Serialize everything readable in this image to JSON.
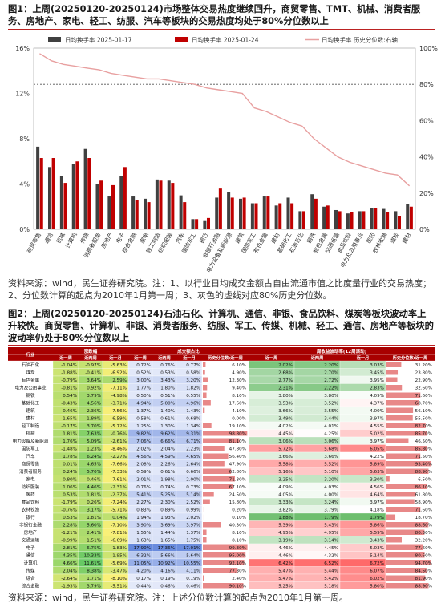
{
  "fig1": {
    "title": "图1：上周(20250120-20250124)市场整体交易热度继续回升，商贸零售、TMT、机械、消费者服务、房地产、家电、轻工、纺服、汽车等板块的交易热度均处于80%分位数以上",
    "source": "资料来源：wind，民生证券研究院。注：1、以行业日均成交金额占自由流通市值之比度量行业的交易热度；2、分位数计算的起点为2010年1月第一周；3、灰色的虚线对应80%历史分位数。"
  },
  "fig2": {
    "title": "图2：上周(20250120-20250124)石油石化、计算机、通信、非银、食品饮料、煤炭等板块波动率上升较快。商贸零售、计算机、非银、消费者服务、纺服、军工、传媒、机械、轻工、通信、房地产等板块的波动率仍处于80%分位数以上",
    "source": "资料来源：wind，民生证券研究院。注：上述分位数计算的起点为2010年1月第一周。"
  },
  "chart_data": [
    {
      "type": "bar",
      "title": "",
      "legend": [
        "日均换手率 2025-01-17",
        "日均换手率 2025-01-24",
        "日均换手率 历史分位数:右轴"
      ],
      "legend_position": "top",
      "categories": [
        "商贸零售",
        "通信",
        "机械",
        "计算机",
        "传媒",
        "消费者服务",
        "房地产",
        "电子",
        "综合金融",
        "家电",
        "轻工制造",
        "纺织服装",
        "汽车",
        "国防军工",
        "银行",
        "非银行金融",
        "电力设备及新能源",
        "建筑",
        "国防军工2",
        "有色金属",
        "建材",
        "基础化工",
        "石油石化",
        "钢铁",
        "有色金属2",
        "交通运输",
        "食品饮料",
        "电力及公用事业",
        "医药",
        "农林牧渔",
        "煤炭",
        "建材2"
      ],
      "series": [
        {
          "name": "日均换手率 2025-01-17",
          "color": "#404040",
          "axis": "left",
          "values": [
            7.3,
            5.5,
            4.7,
            5.8,
            7.1,
            4.0,
            2.9,
            4.7,
            2.9,
            2.7,
            4.4,
            4.3,
            3.0,
            0.9,
            0.8,
            2.8,
            3.3,
            2.7,
            2.3,
            2.9,
            2.1,
            2.8,
            1.6,
            3.1,
            2.0,
            1.7,
            1.4,
            1.6,
            1.9,
            1.8,
            1.6,
            2.2
          ]
        },
        {
          "name": "日均换手率 2025-01-24",
          "color": "#c00000",
          "axis": "left",
          "values": [
            6.3,
            6.3,
            4.1,
            6.0,
            6.3,
            4.3,
            3.9,
            5.5,
            2.6,
            2.4,
            4.3,
            4.1,
            2.4,
            0.9,
            1.0,
            3.6,
            2.8,
            2.8,
            2.3,
            2.9,
            2.3,
            2.3,
            1.6,
            2.7,
            2.1,
            1.6,
            1.5,
            1.6,
            1.9,
            1.5,
            1.2,
            2.0
          ]
        },
        {
          "name": "日均换手率 历史分位数:右轴",
          "color": "#e8a0a0",
          "axis": "right",
          "type": "line",
          "values": [
            97,
            93,
            91,
            90,
            89,
            88,
            86,
            85,
            84,
            83,
            83,
            82,
            81,
            80,
            78,
            77,
            76,
            75,
            67,
            65,
            62,
            59,
            57,
            50,
            45,
            40,
            37,
            35,
            33,
            31,
            30,
            24
          ]
        }
      ],
      "ylim_left": [
        0,
        16
      ],
      "ylim_right": [
        0,
        100
      ],
      "yticks_left": [
        "0%",
        "4%",
        "8%",
        "12%",
        "16%"
      ],
      "yticks_right": [
        "0%",
        "20%",
        "40%",
        "60%",
        "80%",
        "100%"
      ],
      "reference_line": {
        "value": 80,
        "axis": "right",
        "style": "dashed"
      }
    },
    {
      "type": "table",
      "group_headers": [
        "涨跌幅",
        "成交额占比",
        "周收益波动率(12周滚动)"
      ],
      "columns": [
        "行业",
        "近一周",
        "近两周",
        "近一月",
        "近一周",
        "近两周",
        "近一月",
        "历史分位数:近一周",
        "近一周",
        "近两周",
        "近一月",
        "历史分位数:近一周"
      ],
      "rows": [
        [
          "石油石化",
          "-1.04%",
          "-0.97%",
          "-5.63%",
          "0.72%",
          "0.76%",
          "0.77%",
          "6.10%",
          "2.02%",
          "2.20%",
          "3.03%",
          "31.20%"
        ],
        [
          "煤炭",
          "-1.88%",
          "-0.41%",
          "-6.92%",
          "0.52%",
          "0.53%",
          "0.58%",
          "4.90%",
          "2.68%",
          "2.70%",
          "3.45%",
          "23.80%"
        ],
        [
          "有色金属",
          "-0.79%",
          "3.64%",
          "2.59%",
          "3.00%",
          "3.43%",
          "3.20%",
          "12.30%",
          "2.77%",
          "2.72%",
          "3.95%",
          "22.90%"
        ],
        [
          "电力及公用事业",
          "-0.81%",
          "0.92%",
          "-7.11%",
          "1.77%",
          "1.80%",
          "1.82%",
          "9.40%",
          "2.31%",
          "2.22%",
          "2.83%",
          "32.60%"
        ],
        [
          "钢铁",
          "0.54%",
          "3.79%",
          "-4.98%",
          "0.50%",
          "0.51%",
          "0.55%",
          "8.10%",
          "3.80%",
          "3.80%",
          "4.09%",
          "71.60%"
        ],
        [
          "基础化工",
          "-0.43%",
          "4.56%",
          "-3.71%",
          "4.94%",
          "5.00%",
          "4.96%",
          "17.60%",
          "3.53%",
          "3.52%",
          "4.37%",
          "68.70%"
        ],
        [
          "建筑",
          "-0.46%",
          "2.36%",
          "-7.56%",
          "1.37%",
          "1.40%",
          "1.43%",
          "4.10%",
          "3.66%",
          "3.55%",
          "4.00%",
          "56.10%"
        ],
        [
          "建材",
          "-1.65%",
          "1.89%",
          "-6.59%",
          "0.58%",
          "0.61%",
          "0.68%",
          "0.00%",
          "3.49%",
          "3.44%",
          "3.97%",
          "55.50%"
        ],
        [
          "轻工制造",
          "-0.17%",
          "3.70%",
          "-5.72%",
          "1.25%",
          "1.30%",
          "1.34%",
          "19.10%",
          "4.02%",
          "4.01%",
          "4.55%",
          "82.70%"
        ],
        [
          "机械",
          "1.81%",
          "7.63%",
          "-0.76%",
          "9.82%",
          "9.62%",
          "9.31%",
          "98.80%",
          "4.45%",
          "4.25%",
          "5.02%",
          "85.70%"
        ],
        [
          "电力设备及新能源",
          "1.76%",
          "5.09%",
          "-2.61%",
          "7.06%",
          "6.66%",
          "6.71%",
          "81.10%",
          "3.06%",
          "3.06%",
          "3.97%",
          "46.50%"
        ],
        [
          "国防军工",
          "-1.48%",
          "1.23%",
          "-8.46%",
          "2.02%",
          "2.04%",
          "2.23%",
          "47.80%",
          "5.72%",
          "5.68%",
          "6.05%",
          "85.80%"
        ],
        [
          "汽车",
          "1.78%",
          "6.24%",
          "-2.27%",
          "4.56%",
          "4.59%",
          "4.65%",
          "56.40%",
          "3.66%",
          "3.66%",
          "4.22%",
          "71.50%"
        ],
        [
          "商贸零售",
          "0.01%",
          "4.65%",
          "-7.66%",
          "2.08%",
          "2.26%",
          "2.64%",
          "47.90%",
          "5.58%",
          "5.52%",
          "5.89%",
          "93.40%"
        ],
        [
          "消费者服务",
          "0.24%",
          "5.70%",
          "-7.33%",
          "0.59%",
          "0.61%",
          "0.66%",
          "62.80%",
          "5.16%",
          "5.10%",
          "5.63%",
          "88.90%"
        ],
        [
          "家电",
          "-0.80%",
          "-0.46%",
          "-7.61%",
          "2.01%",
          "1.98%",
          "2.00%",
          "71.30%",
          "3.25%",
          "3.20%",
          "3.30%",
          "6.50%"
        ],
        [
          "纺织服装",
          "1.06%",
          "4.46%",
          "-2.31%",
          "0.76%",
          "0.74%",
          "0.73%",
          "67.10%",
          "4.09%",
          "4.03%",
          "4.56%",
          "86.10%"
        ],
        [
          "医药",
          "0.53%",
          "1.81%",
          "-2.37%",
          "5.41%",
          "5.25%",
          "5.14%",
          "24.50%",
          "4.05%",
          "4.00%",
          "4.64%",
          "61.80%"
        ],
        [
          "食品饮料",
          "-1.79%",
          "0.26%",
          "-7.24%",
          "2.27%",
          "2.30%",
          "2.52%",
          "15.80%",
          "3.33%",
          "3.24%",
          "3.97%",
          "58.90%"
        ],
        [
          "农林牧渔",
          "-0.76%",
          "3.17%",
          "-5.71%",
          "0.83%",
          "0.89%",
          "0.99%",
          "0.20%",
          "3.82%",
          "3.79%",
          "4.18%",
          "71.60%"
        ],
        [
          "银行",
          "0.53%",
          "1.81%",
          "0.04%",
          "1.94%",
          "1.93%",
          "2.02%",
          "0.10%",
          "1.88%",
          "1.79%",
          "1.79%",
          "18.70%"
        ],
        [
          "非银行金融",
          "2.28%",
          "5.60%",
          "-7.10%",
          "3.90%",
          "3.69%",
          "3.97%",
          "40.30%",
          "5.39%",
          "5.43%",
          "5.86%",
          "88.60%"
        ],
        [
          "房地产",
          "-1.21%",
          "2.41%",
          "-7.81%",
          "1.55%",
          "1.44%",
          "1.37%",
          "8.10%",
          "4.95%",
          "4.95%",
          "5.59%",
          "80.30%"
        ],
        [
          "交通运输",
          "-0.99%",
          "1.51%",
          "-6.69%",
          "1.63%",
          "1.65%",
          "1.75%",
          "8.10%",
          "3.19%",
          "3.14%",
          "3.43%",
          "32.20%"
        ],
        [
          "电子",
          "2.81%",
          "6.75%",
          "-1.83%",
          "17.90%",
          "17.36%",
          "17.01%",
          "99.30%",
          "4.46%",
          "4.45%",
          "5.03%",
          "77.60%"
        ],
        [
          "通信",
          "4.35%",
          "10.33%",
          "-1.95%",
          "6.32%",
          "5.66%",
          "5.64%",
          "95.00%",
          "4.46%",
          "4.32%",
          "5.14%",
          "80.60%"
        ],
        [
          "计算机",
          "4.66%",
          "11.61%",
          "-5.69%",
          "11.05%",
          "10.92%",
          "10.55%",
          "92.10%",
          "6.42%",
          "6.52%",
          "6.72%",
          "94.70%"
        ],
        [
          "传媒",
          "2.04%",
          "8.38%",
          "-3.47%",
          "4.20%",
          "4.16%",
          "4.11%",
          "77.30%",
          "5.47%",
          "5.44%",
          "6.07%",
          "84.50%"
        ],
        [
          "综合",
          "-2.64%",
          "1.71%",
          "-8.10%",
          "0.17%",
          "0.19%",
          "0.19%",
          "2.40%",
          "5.47%",
          "5.42%",
          "6.02%",
          "81.90%"
        ],
        [
          "综合金融",
          "-1.93%",
          "3.79%",
          "-5.51%",
          "0.44%",
          "0.46%",
          "0.46%",
          "90.10%",
          "5.25%",
          "5.18%",
          "5.80%",
          "88.90%"
        ]
      ]
    }
  ]
}
